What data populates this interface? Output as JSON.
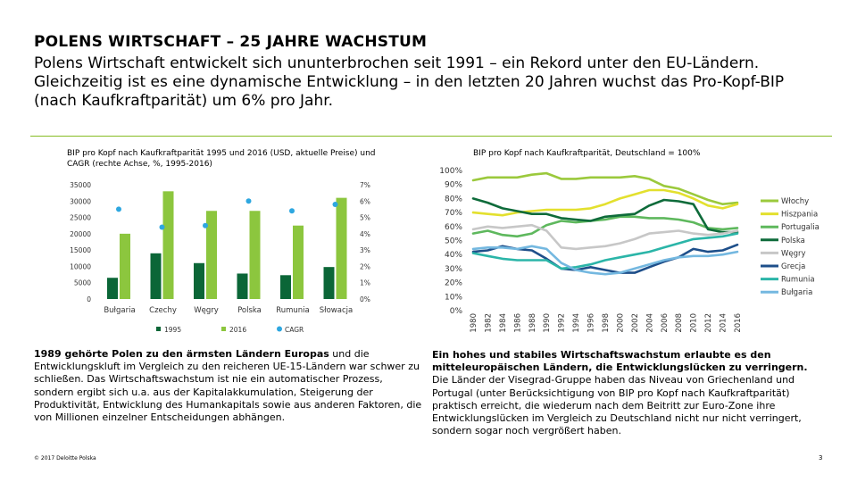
{
  "header": {
    "title": "POLENS WIRTSCHAFT – 25 JAHRE WACHSTUM",
    "subtitle": "Polens Wirtschaft entwickelt sich ununterbrochen seit 1991 – ein Rekord unter den EU-Ländern. Gleichzeitig ist es eine dynamische Entwicklung – in den letzten 20 Jahren wuchst das Pro-Kopf-BIP (nach Kaufkraftparität) um 6% pro Jahr."
  },
  "colors": {
    "accent": "#86bc25",
    "bar1995": "#0b6637",
    "bar2016": "#8cc63e",
    "cagr": "#2ea7e0"
  },
  "chart_data": [
    {
      "type": "bar",
      "title": "BIP pro Kopf nach Kaufkraftparität 1995 und 2016 (USD, aktuelle Preise) und CAGR (rechte Achse, %, 1995-2016)",
      "categories": [
        "Bułgaria",
        "Czechy",
        "Węgry",
        "Polska",
        "Rumunia",
        "Słowacja"
      ],
      "series": [
        {
          "name": "1995",
          "values": [
            6500,
            14000,
            11000,
            7800,
            7300,
            9800
          ]
        },
        {
          "name": "2016",
          "values": [
            20000,
            33000,
            27000,
            27000,
            22500,
            31000
          ]
        },
        {
          "name": "CAGR",
          "axis": "right",
          "values": [
            5.5,
            4.4,
            4.5,
            6.0,
            5.4,
            5.8
          ]
        }
      ],
      "yticks_left": [
        "35000",
        "30000",
        "25000",
        "20000",
        "15000",
        "10000",
        "5000",
        "0"
      ],
      "yticks_right": [
        "7%",
        "6%",
        "5%",
        "4%",
        "3%",
        "2%",
        "1%",
        "0%"
      ],
      "ylim": [
        0,
        35000
      ],
      "y2lim": [
        0,
        7
      ],
      "legend": [
        "1995",
        "2016",
        "CAGR"
      ],
      "legend_position": "bottom"
    },
    {
      "type": "line",
      "title": "BIP pro Kopf nach Kaufkraftparität, Deutschland = 100%",
      "x": [
        1980,
        1982,
        1984,
        1986,
        1988,
        1990,
        1992,
        1994,
        1996,
        1998,
        2000,
        2002,
        2004,
        2006,
        2008,
        2010,
        2012,
        2014,
        2016
      ],
      "ylim": [
        0,
        100
      ],
      "yticks": [
        "100%",
        "90%",
        "80%",
        "70%",
        "60%",
        "50%",
        "40%",
        "30%",
        "20%",
        "10%",
        "0%"
      ],
      "xticks": [
        "1980",
        "1982",
        "1984",
        "1986",
        "1988",
        "1990",
        "1992",
        "1994",
        "1996",
        "1998",
        "2000",
        "2002",
        "2004",
        "2006",
        "2008",
        "2010",
        "2012",
        "2014",
        "2016"
      ],
      "series": [
        {
          "name": "Włochy",
          "color": "#9bc93c",
          "values": [
            93,
            95,
            95,
            95,
            97,
            98,
            94,
            94,
            95,
            95,
            95,
            96,
            94,
            89,
            87,
            83,
            79,
            76,
            77
          ]
        },
        {
          "name": "Hiszpania",
          "color": "#e3e02e",
          "values": [
            70,
            69,
            68,
            70,
            71,
            72,
            72,
            72,
            73,
            76,
            80,
            83,
            86,
            86,
            84,
            80,
            75,
            73,
            76
          ]
        },
        {
          "name": "Portugalia",
          "color": "#5eb85d",
          "values": [
            55,
            57,
            54,
            53,
            55,
            61,
            64,
            63,
            64,
            65,
            67,
            67,
            66,
            66,
            65,
            63,
            59,
            58,
            59
          ]
        },
        {
          "name": "Polska",
          "color": "#0e6b3a",
          "values": [
            80,
            77,
            73,
            71,
            69,
            69,
            66,
            65,
            64,
            67,
            68,
            69,
            75,
            79,
            78,
            76,
            58,
            56,
            56
          ]
        },
        {
          "name": "Węgry",
          "color": "#c7c7c7",
          "values": [
            58,
            60,
            59,
            60,
            61,
            57,
            45,
            44,
            45,
            46,
            48,
            51,
            55,
            56,
            57,
            55,
            54,
            55,
            57
          ]
        },
        {
          "name": "Grecja",
          "color": "#1e4f8a",
          "values": [
            42,
            43,
            46,
            44,
            43,
            37,
            30,
            29,
            31,
            29,
            27,
            27,
            31,
            35,
            38,
            44,
            42,
            43,
            47
          ]
        },
        {
          "name": "Rumunia",
          "color": "#2bb5a8",
          "values": [
            41,
            39,
            37,
            36,
            36,
            36,
            30,
            31,
            33,
            36,
            38,
            40,
            42,
            45,
            48,
            51,
            52,
            53,
            55
          ]
        },
        {
          "name": "Bułgaria",
          "color": "#74b8e0",
          "values": [
            44,
            45,
            45,
            44,
            46,
            44,
            34,
            29,
            27,
            26,
            27,
            30,
            33,
            36,
            38,
            39,
            39,
            40,
            42
          ]
        }
      ],
      "legend_position": "right"
    }
  ],
  "left_text": {
    "lead": "1989 gehörte Polen zu den ärmsten Ländern Europas",
    "body": " und die Entwicklungskluft im Vergleich zu den reicheren UE-15-Ländern war schwer zu schließen.  Das Wirtschaftswachstum ist nie ein automatischer Prozess, sondern ergibt sich u.a. aus der Kapitalakkumulation, Steigerung der Produktivität, Entwicklung des Humankapitals sowie aus anderen Faktoren, die von Millionen einzelner Entscheidungen abhängen."
  },
  "right_text": {
    "lead": "Ein hohes und stabiles Wirtschaftswachstum erlaubte es den mitteleuropäischen Ländern, die Entwicklungslücken zu verringern.",
    "body": " Die Länder der Visegrad-Gruppe haben das Niveau von Griechenland und Portugal (unter Berücksichtigung von BIP pro Kopf nach Kaufkraftparität) praktisch erreicht, die wiederum nach dem Beitritt zur Euro-Zone ihre Entwicklungslücken im Vergleich zu Deutschland nicht nur nicht verringert, sondern sogar noch vergrößert haben."
  },
  "footer": {
    "copyright": "© 2017 Deloitte Polska",
    "page": "3"
  }
}
